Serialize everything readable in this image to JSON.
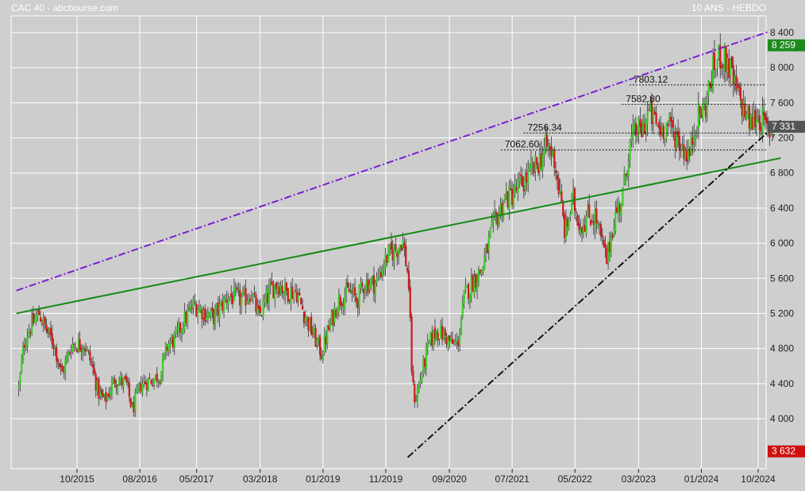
{
  "header": {
    "left": "CAC 40 - abcbourse.com",
    "right": "10 ANS - HEBDO"
  },
  "chart_data": {
    "type": "candlestick",
    "ylim": [
      3500,
      8600
    ],
    "y_ticks": [
      {
        "value": 8400,
        "label": "8 400"
      },
      {
        "value": 8000,
        "label": "8 000"
      },
      {
        "value": 7600,
        "label": "7 600"
      },
      {
        "value": 7200,
        "label": "7 200"
      },
      {
        "value": 6800,
        "label": "6 800"
      },
      {
        "value": 6400,
        "label": "6 400"
      },
      {
        "value": 6000,
        "label": "6 000"
      },
      {
        "value": 5600,
        "label": "5 600"
      },
      {
        "value": 5200,
        "label": "5 200"
      },
      {
        "value": 4800,
        "label": "4 800"
      },
      {
        "value": 4400,
        "label": "4 400"
      },
      {
        "value": 4000,
        "label": "4 000"
      }
    ],
    "x_ticks": [
      {
        "t": 2015.75,
        "label": "10/2015"
      },
      {
        "t": 2016.58,
        "label": "08/2016"
      },
      {
        "t": 2017.33,
        "label": "05/2017"
      },
      {
        "t": 2018.17,
        "label": "03/2018"
      },
      {
        "t": 2019.0,
        "label": "01/2019"
      },
      {
        "t": 2019.83,
        "label": "11/2019"
      },
      {
        "t": 2020.67,
        "label": "09/2020"
      },
      {
        "t": 2021.5,
        "label": "07/2021"
      },
      {
        "t": 2022.33,
        "label": "05/2022"
      },
      {
        "t": 2023.17,
        "label": "03/2023"
      },
      {
        "t": 2024.0,
        "label": "01/2024"
      },
      {
        "t": 2024.75,
        "label": "10/2024"
      }
    ],
    "price_path": [
      [
        2014.98,
        4350
      ],
      [
        2015.05,
        4850
      ],
      [
        2015.1,
        5000
      ],
      [
        2015.25,
        5200
      ],
      [
        2015.35,
        5000
      ],
      [
        2015.45,
        4850
      ],
      [
        2015.55,
        4500
      ],
      [
        2015.68,
        4850
      ],
      [
        2015.85,
        4850
      ],
      [
        2015.95,
        4600
      ],
      [
        2016.03,
        4300
      ],
      [
        2016.12,
        4200
      ],
      [
        2016.25,
        4450
      ],
      [
        2016.4,
        4400
      ],
      [
        2016.48,
        4100
      ],
      [
        2016.6,
        4400
      ],
      [
        2016.75,
        4450
      ],
      [
        2016.85,
        4500
      ],
      [
        2016.95,
        4850
      ],
      [
        2017.05,
        4900
      ],
      [
        2017.15,
        5100
      ],
      [
        2017.3,
        5300
      ],
      [
        2017.45,
        5200
      ],
      [
        2017.55,
        5150
      ],
      [
        2017.75,
        5400
      ],
      [
        2017.95,
        5350
      ],
      [
        2018.05,
        5450
      ],
      [
        2018.15,
        5150
      ],
      [
        2018.3,
        5450
      ],
      [
        2018.4,
        5550
      ],
      [
        2018.5,
        5450
      ],
      [
        2018.65,
        5450
      ],
      [
        2018.75,
        5200
      ],
      [
        2018.85,
        5000
      ],
      [
        2018.98,
        4750
      ],
      [
        2019.05,
        4950
      ],
      [
        2019.2,
        5350
      ],
      [
        2019.35,
        5450
      ],
      [
        2019.45,
        5350
      ],
      [
        2019.55,
        5550
      ],
      [
        2019.7,
        5550
      ],
      [
        2019.85,
        5850
      ],
      [
        2019.98,
        5950
      ],
      [
        2020.05,
        6050
      ],
      [
        2020.13,
        5600
      ],
      [
        2020.18,
        4400
      ],
      [
        2020.22,
        4200
      ],
      [
        2020.3,
        4500
      ],
      [
        2020.4,
        4850
      ],
      [
        2020.5,
        5000
      ],
      [
        2020.6,
        4950
      ],
      [
        2020.7,
        4850
      ],
      [
        2020.78,
        4850
      ],
      [
        2020.87,
        5400
      ],
      [
        2020.97,
        5550
      ],
      [
        2021.1,
        5700
      ],
      [
        2021.25,
        6200
      ],
      [
        2021.4,
        6500
      ],
      [
        2021.5,
        6550
      ],
      [
        2021.65,
        6700
      ],
      [
        2021.8,
        6850
      ],
      [
        2021.95,
        7100
      ],
      [
        2022.05,
        7000
      ],
      [
        2022.12,
        6600
      ],
      [
        2022.2,
        6100
      ],
      [
        2022.3,
        6500
      ],
      [
        2022.4,
        6200
      ],
      [
        2022.5,
        6300
      ],
      [
        2022.6,
        6300
      ],
      [
        2022.7,
        5950
      ],
      [
        2022.75,
        5800
      ],
      [
        2022.85,
        6300
      ],
      [
        2022.95,
        6500
      ],
      [
        2023.05,
        7100
      ],
      [
        2023.15,
        7300
      ],
      [
        2023.2,
        7250
      ],
      [
        2023.3,
        7500
      ],
      [
        2023.45,
        7300
      ],
      [
        2023.55,
        7350
      ],
      [
        2023.65,
        7250
      ],
      [
        2023.75,
        7100
      ],
      [
        2023.85,
        7000
      ],
      [
        2023.92,
        7400
      ],
      [
        2024.05,
        7550
      ],
      [
        2024.15,
        7950
      ],
      [
        2024.25,
        8150
      ],
      [
        2024.35,
        8050
      ],
      [
        2024.45,
        7750
      ],
      [
        2024.55,
        7550
      ],
      [
        2024.65,
        7350
      ],
      [
        2024.72,
        7450
      ],
      [
        2024.8,
        7400
      ],
      [
        2024.88,
        7250
      ],
      [
        2024.95,
        7330
      ]
    ],
    "lines": [
      {
        "name": "upper-channel",
        "style": "dash-dot",
        "color": "#7a1fd0",
        "from": [
          2014.95,
          5460
        ],
        "to": [
          2024.87,
          8405
        ]
      },
      {
        "name": "long-support",
        "style": "solid",
        "color": "#138a13",
        "from": [
          2014.95,
          5200
        ],
        "to": [
          2025.05,
          6970
        ]
      },
      {
        "name": "rising-support",
        "style": "dash-dot",
        "color": "#111111",
        "from": [
          2020.12,
          3560
        ],
        "to": [
          2025.05,
          7400
        ]
      }
    ],
    "levels": [
      {
        "value": 7803.12,
        "label": "7803.12",
        "from": 2023.05
      },
      {
        "value": 7582.8,
        "label": "7582.80",
        "from": 2022.95
      },
      {
        "value": 7256.34,
        "label": "7256.34",
        "from": 2021.65
      },
      {
        "value": 7062.6,
        "label": "7062.60",
        "from": 2021.35
      }
    ],
    "markers": [
      {
        "value": 8259,
        "label": "8 259",
        "color": "#1e8a1e"
      },
      {
        "value": 7331,
        "label": "7 331",
        "color": "#555555"
      },
      {
        "value": 3632,
        "label": "3 632",
        "color": "#d01010"
      }
    ]
  }
}
